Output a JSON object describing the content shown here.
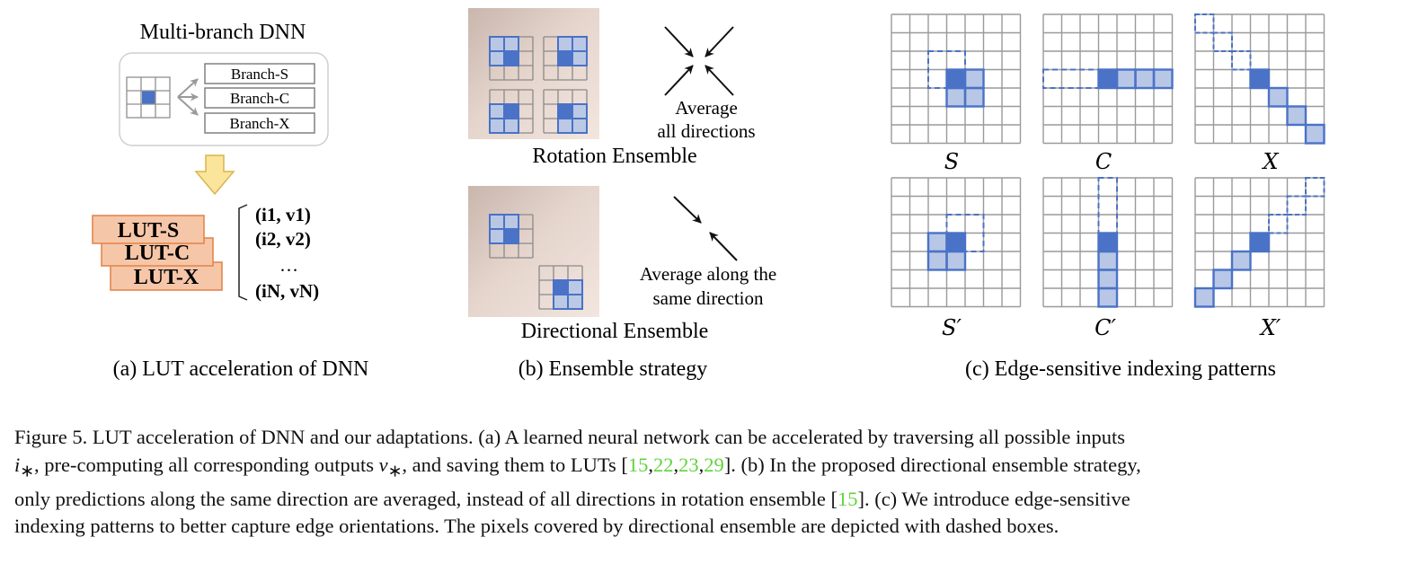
{
  "panel_a": {
    "title": "Multi-branch DNN",
    "branches": [
      "Branch-S",
      "Branch-C",
      "Branch-X"
    ],
    "luts": [
      "LUT-S",
      "LUT-C",
      "LUT-X"
    ],
    "pairs": [
      "(i1, v1)",
      "(i2, v2)",
      "…",
      "(iN, vN)"
    ],
    "label": "(a) LUT acceleration of DNN"
  },
  "panel_b": {
    "rotation_title": "Rotation Ensemble",
    "rotation_note_1": "Average",
    "rotation_note_2": "all directions",
    "directional_title": "Directional Ensemble",
    "directional_note_1": "Average along the",
    "directional_note_2": "same direction",
    "label": "(b) Ensemble strategy"
  },
  "panel_c": {
    "patterns": [
      "S",
      "C",
      "X",
      "S′",
      "C′",
      "X′"
    ],
    "label": "(c) Edge-sensitive indexing patterns"
  },
  "caption": {
    "l1": "Figure 5. LUT acceleration of DNN and our adaptations. (a) A learned neural network can be accelerated by traversing all possible inputs",
    "l2a": "i",
    "l2b": "∗",
    "l2c": ", pre-computing all corresponding outputs ",
    "l2d": "v",
    "l2e": "∗",
    "l2f": ", and saving them to LUTs [",
    "c15": "15",
    "c22": "22",
    "c23": "23",
    "c29": "29",
    "l2g": "]. (b) In the proposed directional ensemble strategy,",
    "l3a": "only predictions along the same direction are averaged, instead of all directions in rotation ensemble [",
    "l3b": "15",
    "l3c": "]. (c) We introduce edge-sensitive",
    "l4": "indexing patterns to better capture edge orientations. The pixels covered by directional ensemble are depicted with dashed boxes."
  },
  "colors": {
    "blue_dark": "#4a72c6",
    "blue_light": "#b8c7e6",
    "lut_orange": "#f6c6a8",
    "lut_border": "#e3874d",
    "arrow_yellow": "#fbe59c",
    "cite_green": "#5fd53a"
  }
}
